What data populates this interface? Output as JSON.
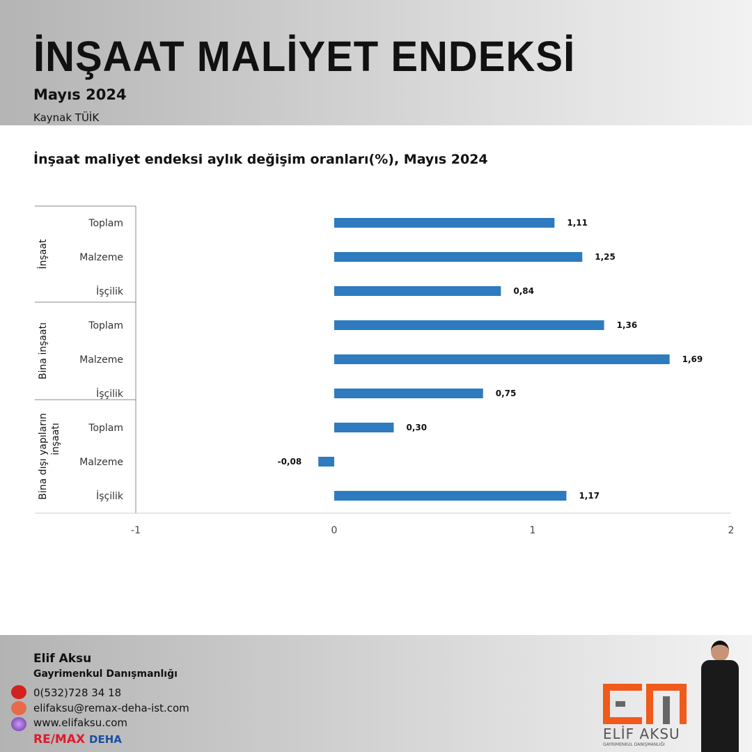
{
  "header": {
    "title": "İNŞAAT MALİYET ENDEKSİ",
    "subtitle": "Mayıs 2024",
    "source": "Kaynak TÜİK"
  },
  "chart_data": {
    "type": "bar",
    "orientation": "horizontal",
    "title": "İnşaat maliyet endeksi aylık değişim oranları(%), Mayıs 2024",
    "groups": [
      {
        "name": "İnşaat",
        "categories": [
          "Toplam",
          "Malzeme",
          "İşçilik"
        ],
        "values": [
          1.11,
          1.25,
          0.84
        ],
        "labels": [
          "1,11",
          "1,25",
          "0,84"
        ]
      },
      {
        "name": "Bina inşaatı",
        "categories": [
          "Toplam",
          "Malzeme",
          "İşçilik"
        ],
        "values": [
          1.36,
          1.69,
          0.75
        ],
        "labels": [
          "1,36",
          "1,69",
          "0,75"
        ]
      },
      {
        "name": "Bina dışı yapıların inşaatı",
        "categories": [
          "Toplam",
          "Malzeme",
          "İşçilik"
        ],
        "values": [
          0.3,
          -0.08,
          1.17
        ],
        "labels": [
          "0,30",
          "-0,08",
          "1,17"
        ]
      }
    ],
    "xlim": [
      -1,
      2
    ],
    "xticks": [
      -1,
      0,
      1,
      2
    ],
    "xtick_labels": [
      "-1",
      "0",
      "1",
      "2"
    ],
    "bar_color": "#2e7bbf",
    "grid": false,
    "legend": "none"
  },
  "footer": {
    "name": "Elif Aksu",
    "role": "Gayrimenkul Danışmanlığı",
    "phone": "0(532)728 34 18",
    "email": "elifaksu@remax-deha-ist.com",
    "web": "www.elifaksu.com",
    "brand_a": "RE/MAX",
    "brand_b": "DEHA",
    "logo_name": "ELİF AKSU",
    "logo_sub": "GAYRIMENKUL DANIŞMANLIĞI"
  }
}
